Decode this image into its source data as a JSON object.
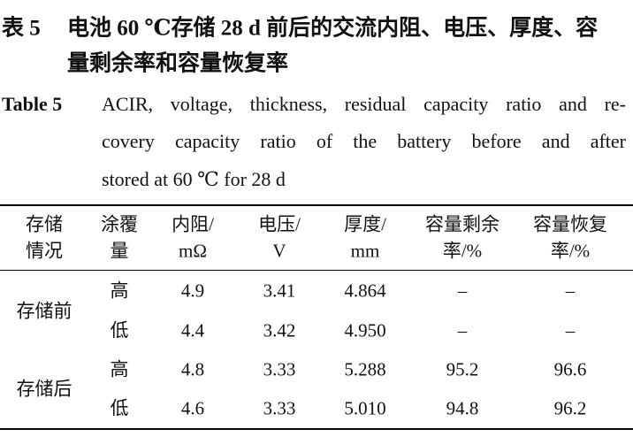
{
  "caption": {
    "label": "表 5",
    "title_lines": [
      "电池 60 ℃存储 28 d 前后的交流内阻、电压、厚度、容",
      "量剩余率和容量恢复率"
    ]
  },
  "caption_en": {
    "label": "Table 5",
    "lines": [
      "ACIR, voltage, thickness, residual capacity ratio and re-",
      "covery capacity ratio of the battery before and after",
      "stored at 60 ℃ for 28 d"
    ]
  },
  "table": {
    "headers": [
      [
        "存储",
        "情况"
      ],
      [
        "涂覆",
        "量"
      ],
      [
        "内阻/",
        "mΩ"
      ],
      [
        "电压/",
        "V"
      ],
      [
        "厚度/",
        "mm"
      ],
      [
        "容量剩余",
        "率/%"
      ],
      [
        "容量恢复",
        "率/%"
      ]
    ],
    "groups": [
      {
        "name": "存储前",
        "rows": [
          [
            "高",
            "4.9",
            "3.41",
            "4.864",
            "–",
            "–"
          ],
          [
            "低",
            "4.4",
            "3.42",
            "4.950",
            "–",
            "–"
          ]
        ]
      },
      {
        "name": "存储后",
        "rows": [
          [
            "高",
            "4.8",
            "3.33",
            "5.288",
            "95.2",
            "96.6"
          ],
          [
            "低",
            "4.6",
            "3.33",
            "5.010",
            "94.8",
            "96.2"
          ]
        ]
      }
    ]
  }
}
